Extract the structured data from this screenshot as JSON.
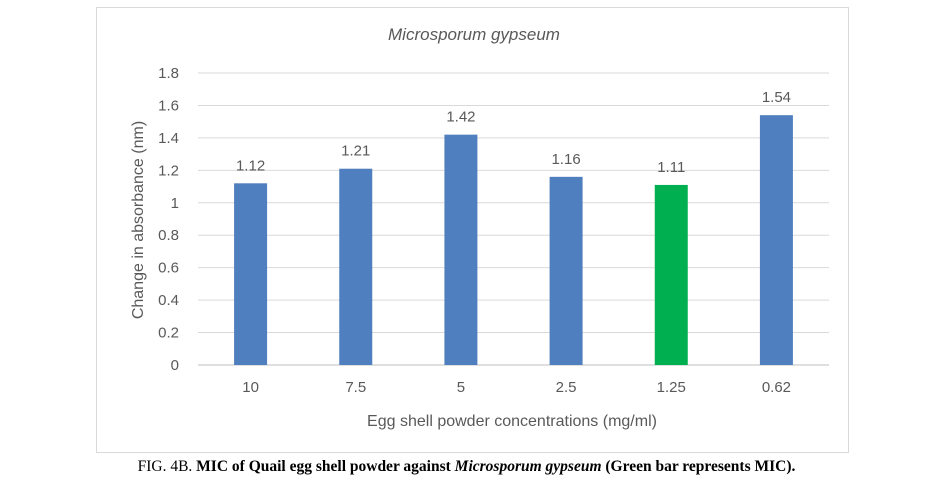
{
  "chart_data": {
    "type": "bar",
    "title": "Microsporum gypseum",
    "xlabel": "Egg shell powder concentrations (mg/ml)",
    "ylabel": "Change in absorbance (nm)",
    "categories": [
      "10",
      "7.5",
      "5",
      "2.5",
      "1.25",
      "0.62"
    ],
    "values": [
      1.12,
      1.21,
      1.42,
      1.16,
      1.11,
      1.54
    ],
    "data_labels": [
      "1.12",
      "1.21",
      "1.42",
      "1.16",
      "1.11",
      "1.54"
    ],
    "highlight_index": 4,
    "colors": {
      "default": "#4f7fbe",
      "highlight": "#00b050"
    },
    "ylim": [
      0,
      1.8
    ],
    "yticks": [
      "0",
      "0.2",
      "0.4",
      "0.6",
      "0.8",
      "1",
      "1.2",
      "1.4",
      "1.6",
      "1.8"
    ],
    "grid": true,
    "legend": "none"
  },
  "caption": {
    "fig_label": "FIG. 4B.",
    "text_1": "MIC of Quail egg shell powder against",
    "species": "Microsporum gypseum",
    "text_2": "(Green bar represents MIC)."
  }
}
